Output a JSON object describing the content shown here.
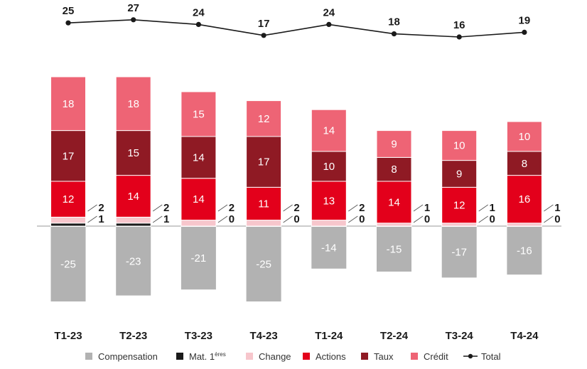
{
  "chart_data": {
    "type": "bar",
    "stacked": true,
    "title": "",
    "xlabel": "",
    "ylabel": "",
    "categories": [
      "T1-23",
      "T2-23",
      "T3-23",
      "T4-23",
      "T1-24",
      "T2-24",
      "T3-24",
      "T4-24"
    ],
    "series": [
      {
        "name": "Compensation",
        "color": "#b2b2b2",
        "values": [
          -25,
          -23,
          -21,
          -25,
          -14,
          -15,
          -17,
          -16
        ]
      },
      {
        "name": "Mat. 1ères",
        "label_main": "Mat. 1",
        "label_sup": "ères",
        "color": "#1a1a1a",
        "values": [
          1,
          1,
          0,
          0,
          0,
          0,
          0,
          0
        ]
      },
      {
        "name": "Change",
        "color": "#f7c6cc",
        "values": [
          2,
          2,
          2,
          2,
          2,
          1,
          1,
          1
        ]
      },
      {
        "name": "Actions",
        "color": "#e3001b",
        "values": [
          12,
          14,
          14,
          11,
          13,
          14,
          12,
          16
        ]
      },
      {
        "name": "Taux",
        "color": "#8f1a24",
        "values": [
          17,
          15,
          14,
          17,
          10,
          8,
          9,
          8
        ]
      },
      {
        "name": "Crédit",
        "color": "#ee6475",
        "values": [
          18,
          18,
          15,
          12,
          14,
          9,
          10,
          10
        ]
      }
    ],
    "total": {
      "name": "Total",
      "color": "#1a1a1a",
      "values": [
        25,
        27,
        24,
        17,
        24,
        18,
        16,
        19
      ]
    },
    "legend_position": "bottom",
    "grid": false
  }
}
